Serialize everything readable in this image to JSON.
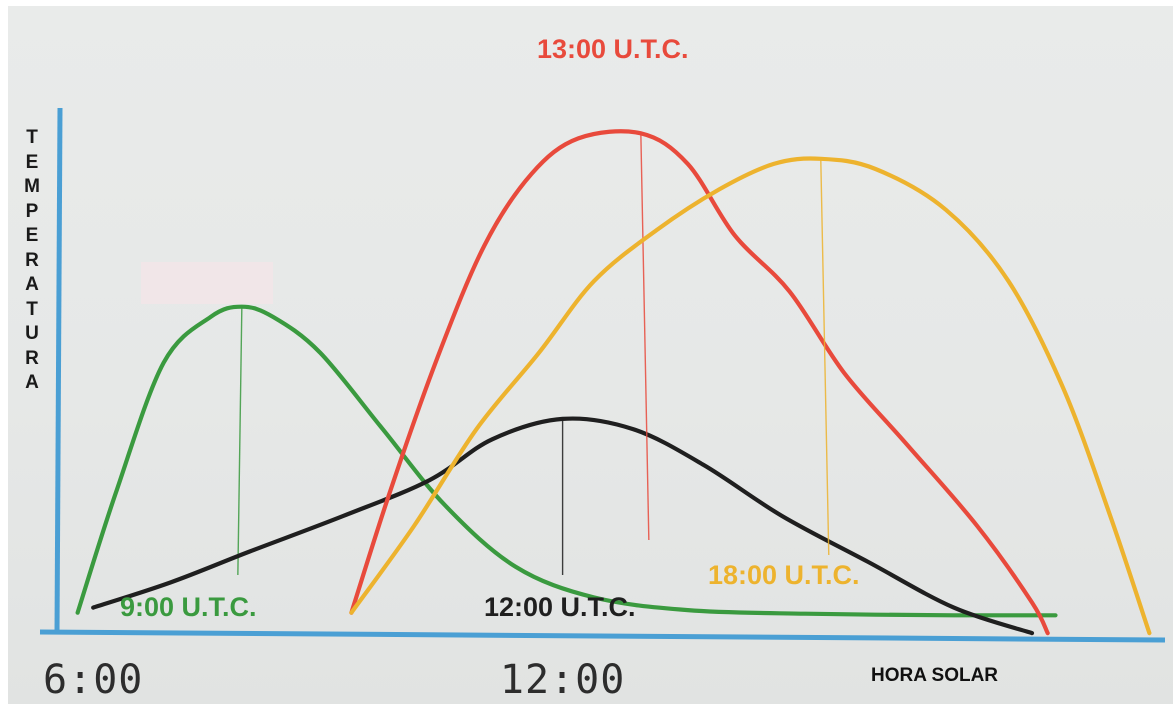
{
  "chart_data": {
    "type": "line",
    "title": "",
    "ylabel": "TEMPERATURA",
    "xlabel": "HORA SOLAR",
    "x_ticks": [
      {
        "label": "6:00",
        "value": 6
      },
      {
        "label": "12:00",
        "value": 12
      }
    ],
    "xlim": [
      5.55,
      19.7
    ],
    "ylim": [
      0,
      100
    ],
    "grid": false,
    "legend": "none",
    "axis_color": "#4a9fd4",
    "series": [
      {
        "name": "9:00 U.T.C.",
        "color": "#3a9a3f",
        "peak": [
          7.9,
          63
        ],
        "points": [
          [
            5.8,
            3
          ],
          [
            6.3,
            27
          ],
          [
            6.9,
            52
          ],
          [
            7.5,
            61
          ],
          [
            7.9,
            63
          ],
          [
            8.3,
            61
          ],
          [
            8.9,
            54
          ],
          [
            9.7,
            39
          ],
          [
            10.5,
            24
          ],
          [
            11.4,
            12
          ],
          [
            12.4,
            6
          ],
          [
            13.6,
            3.5
          ],
          [
            15.1,
            2.8
          ],
          [
            17.0,
            2.5
          ],
          [
            18.3,
            2.5
          ]
        ]
      },
      {
        "name": "12:00 U.T.C.",
        "color": "#1f1f1f",
        "peak": [
          12.0,
          41
        ],
        "points": [
          [
            6.0,
            4
          ],
          [
            7.0,
            9
          ],
          [
            8.0,
            15
          ],
          [
            9.2,
            22
          ],
          [
            10.3,
            29
          ],
          [
            11.1,
            37
          ],
          [
            12.0,
            41
          ],
          [
            12.9,
            39
          ],
          [
            13.8,
            32
          ],
          [
            14.8,
            22
          ],
          [
            15.9,
            13
          ],
          [
            17.0,
            4
          ],
          [
            18.0,
            -1
          ]
        ]
      },
      {
        "name": "13:00 U.T.C.",
        "color": "#e84a3c",
        "peak": [
          13.0,
          97
        ],
        "points": [
          [
            9.3,
            3
          ],
          [
            9.8,
            27
          ],
          [
            10.4,
            53
          ],
          [
            11.0,
            75
          ],
          [
            11.6,
            89
          ],
          [
            12.2,
            96
          ],
          [
            13.0,
            97
          ],
          [
            13.6,
            91
          ],
          [
            14.2,
            77
          ],
          [
            14.9,
            66
          ],
          [
            15.6,
            50
          ],
          [
            16.4,
            36
          ],
          [
            17.3,
            20
          ],
          [
            18.0,
            5
          ],
          [
            18.2,
            -1
          ]
        ]
      },
      {
        "name": "18:00 U.T.C.",
        "color": "#edb32e",
        "peak": [
          15.3,
          92
        ],
        "points": [
          [
            9.3,
            3
          ],
          [
            10.1,
            20
          ],
          [
            10.9,
            39
          ],
          [
            11.7,
            54
          ],
          [
            12.4,
            68
          ],
          [
            13.2,
            78
          ],
          [
            14.0,
            86
          ],
          [
            14.7,
            91
          ],
          [
            15.3,
            92
          ],
          [
            16.0,
            90
          ],
          [
            16.9,
            82
          ],
          [
            17.7,
            68
          ],
          [
            18.4,
            47
          ],
          [
            19.0,
            22
          ],
          [
            19.5,
            -1
          ]
        ]
      }
    ]
  }
}
